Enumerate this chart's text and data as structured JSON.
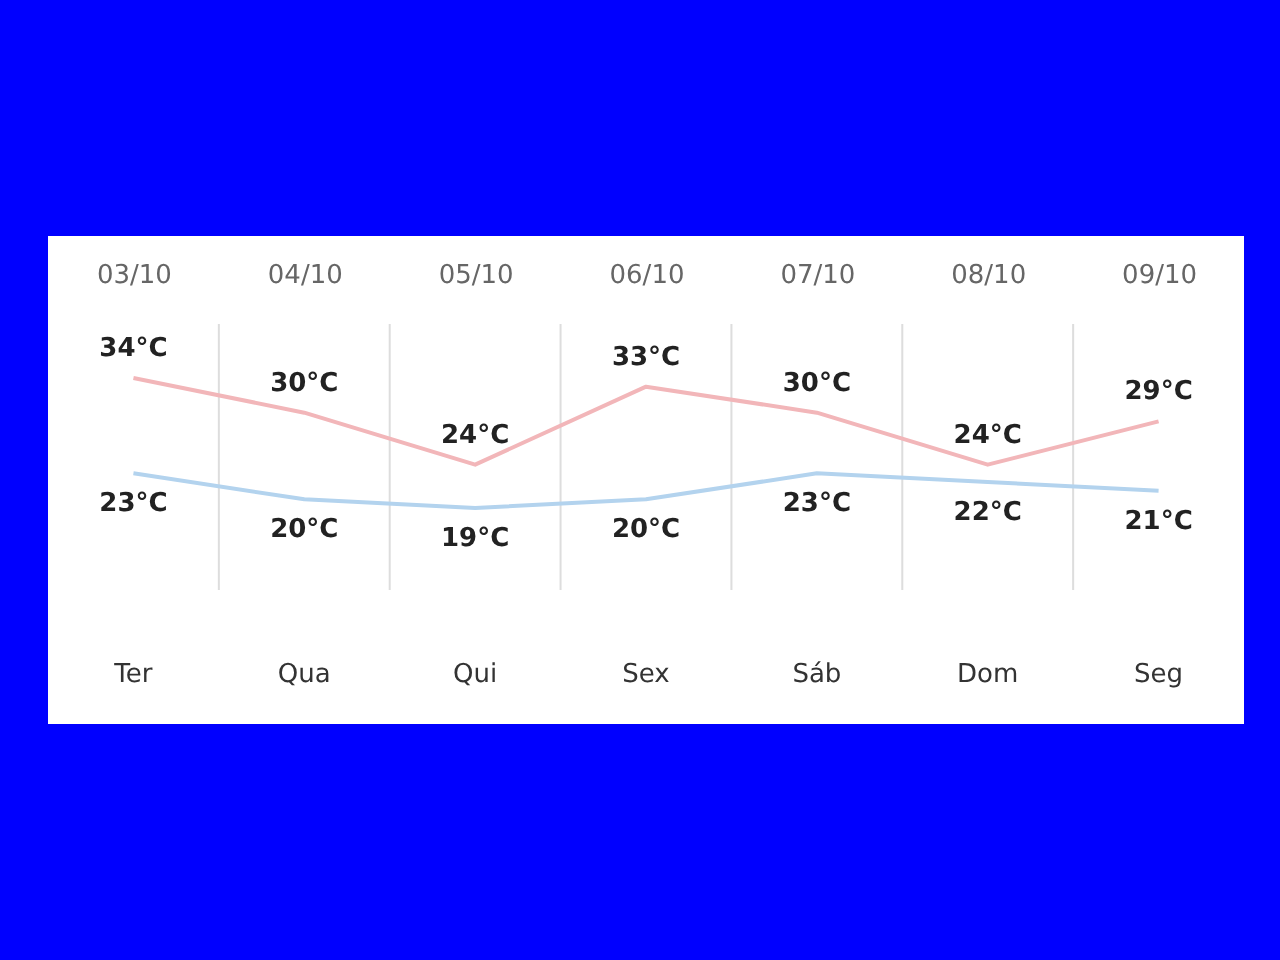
{
  "chart_data": {
    "type": "line",
    "categories": [
      "03/10",
      "04/10",
      "05/10",
      "06/10",
      "07/10",
      "08/10",
      "09/10"
    ],
    "series": [
      {
        "color": "#f2b6b9",
        "values": [
          34,
          30,
          24,
          33,
          30,
          24,
          29
        ],
        "value_labels": [
          "34°C",
          "30°C",
          "24°C",
          "33°C",
          "30°C",
          "24°C",
          "29°C"
        ]
      },
      {
        "color": "#b3d3ee",
        "values": [
          23,
          20,
          19,
          20,
          23,
          22,
          21
        ],
        "value_labels": [
          "23°C",
          "20°C",
          "19°C",
          "20°C",
          "23°C",
          "22°C",
          "21°C"
        ]
      }
    ],
    "annotations": [
      "Ter",
      "Qua",
      "Qui",
      "Sex",
      "Sáb",
      "Dom",
      "Seg"
    ],
    "grid": "x",
    "marker": "none",
    "line_style": "solid",
    "tick_labels": "x"
  }
}
